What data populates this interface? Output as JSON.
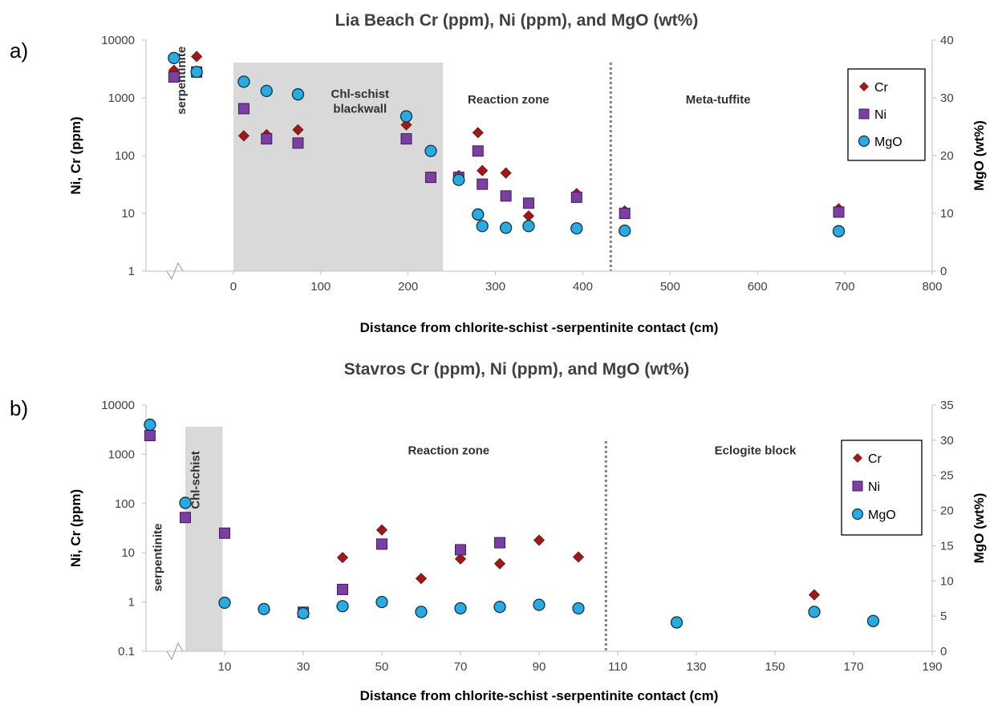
{
  "colors": {
    "cr": "#9b1b1b",
    "ni": "#7b3fa3",
    "mgo": "#29abe2",
    "shade": "#d9d9d9",
    "axis": "#bfbfbf"
  },
  "chart_data": [
    {
      "type": "scatter",
      "panel": "a)",
      "title": "Lia Beach Cr (ppm), Ni (ppm), and MgO (wt%)",
      "xlabel": "Distance from chlorite-schist -serpentinite contact (cm)",
      "ylabel": "Ni, Cr (ppm)",
      "y2label": "MgO (wt%)",
      "xlim": [
        -100,
        800
      ],
      "x_ticks": [
        0,
        100,
        200,
        300,
        400,
        500,
        600,
        700,
        800
      ],
      "ylim": [
        1,
        10000
      ],
      "y_scale": "log",
      "y_ticks": [
        1,
        10,
        100,
        1000,
        10000
      ],
      "y2lim": [
        0,
        40
      ],
      "y2_ticks": [
        0,
        10,
        20,
        30,
        40
      ],
      "axis_break": true,
      "legend_position": "top-right",
      "shaded_band": [
        0,
        240
      ],
      "dashed_line_x": 432,
      "zones": [
        {
          "text": "serpentinite",
          "x": -55,
          "y": 2000,
          "vertical": true
        },
        {
          "text": "Chl-schist",
          "x": 145,
          "y": 1000
        },
        {
          "text": "blackwall",
          "x": 145,
          "y": 550
        },
        {
          "text": "Reaction zone",
          "x": 315,
          "y": 800
        },
        {
          "text": "Meta-tuffite",
          "x": 555,
          "y": 800
        }
      ],
      "series": [
        {
          "name": "Cr",
          "marker": "diamond",
          "axis": "left",
          "points": [
            [
              -68,
              3000
            ],
            [
              -42,
              5200
            ],
            [
              12,
              220
            ],
            [
              38,
              230
            ],
            [
              74,
              280
            ],
            [
              198,
              340
            ],
            [
              226,
              42
            ],
            [
              258,
              45
            ],
            [
              280,
              250
            ],
            [
              285,
              55
            ],
            [
              312,
              50
            ],
            [
              338,
              9
            ],
            [
              393,
              22
            ],
            [
              448,
              11
            ],
            [
              693,
              12
            ]
          ]
        },
        {
          "name": "Ni",
          "marker": "square",
          "axis": "left",
          "points": [
            [
              -68,
              2300
            ],
            [
              -42,
              2800
            ],
            [
              12,
              650
            ],
            [
              38,
              195
            ],
            [
              74,
              165
            ],
            [
              198,
              195
            ],
            [
              226,
              42
            ],
            [
              258,
              42
            ],
            [
              280,
              120
            ],
            [
              285,
              32
            ],
            [
              312,
              20
            ],
            [
              338,
              15
            ],
            [
              393,
              19
            ],
            [
              448,
              10
            ],
            [
              693,
              10.5
            ]
          ]
        },
        {
          "name": "MgO",
          "marker": "circle",
          "axis": "right",
          "points": [
            [
              -68,
              36.9
            ],
            [
              -42,
              34.5
            ],
            [
              12,
              32.8
            ],
            [
              38,
              31.2
            ],
            [
              74,
              30.6
            ],
            [
              198,
              26.8
            ],
            [
              226,
              20.8
            ],
            [
              258,
              15.8
            ],
            [
              280,
              9.8
            ],
            [
              285,
              7.8
            ],
            [
              312,
              7.5
            ],
            [
              338,
              7.8
            ],
            [
              393,
              7.4
            ],
            [
              448,
              7.0
            ],
            [
              693,
              6.9
            ]
          ]
        }
      ]
    },
    {
      "type": "scatter",
      "panel": "b)",
      "title": "Stavros Cr (ppm), Ni (ppm), and MgO (wt%)",
      "xlabel": "Distance from chlorite-schist -serpentinite contact (cm)",
      "ylabel": "Ni, Cr (ppm)",
      "y2label": "MgO (wt%)",
      "xlim": [
        -10,
        190
      ],
      "x_ticks": [
        10,
        30,
        50,
        70,
        90,
        110,
        130,
        150,
        170,
        190
      ],
      "ylim": [
        0.1,
        10000
      ],
      "y_scale": "log",
      "y_ticks": [
        0.1,
        1,
        10,
        100,
        1000,
        10000
      ],
      "y2lim": [
        0,
        35
      ],
      "y2_ticks": [
        0,
        5,
        10,
        15,
        20,
        25,
        30,
        35
      ],
      "axis_break": true,
      "legend_position": "top-right",
      "shaded_band": [
        0,
        9.5
      ],
      "dashed_line_x": 107,
      "zones": [
        {
          "text": "serpentinite",
          "x": -6,
          "y": 8,
          "vertical": true
        },
        {
          "text": "Chl-schist",
          "x": 3.6,
          "y": 300,
          "vertical": true
        },
        {
          "text": "Reaction zone",
          "x": 67,
          "y": 1000
        },
        {
          "text": "Eclogite block",
          "x": 145,
          "y": 1000
        }
      ],
      "series": [
        {
          "name": "Cr",
          "marker": "diamond",
          "axis": "left",
          "points": [
            [
              40,
              8
            ],
            [
              50,
              29
            ],
            [
              60,
              3
            ],
            [
              70,
              7.5
            ],
            [
              80,
              6
            ],
            [
              90,
              18
            ],
            [
              100,
              8.2
            ],
            [
              160,
              1.4
            ]
          ]
        },
        {
          "name": "Ni",
          "marker": "square",
          "axis": "left",
          "points": [
            [
              -9,
              2400
            ],
            [
              0,
              52
            ],
            [
              10,
              25
            ],
            [
              30,
              0.62
            ],
            [
              40,
              1.8
            ],
            [
              50,
              15
            ],
            [
              70,
              11.5
            ],
            [
              80,
              16
            ]
          ]
        },
        {
          "name": "MgO",
          "marker": "circle",
          "axis": "right",
          "points": [
            [
              -9,
              32.2
            ],
            [
              0,
              21.1
            ],
            [
              10,
              6.9
            ],
            [
              20,
              6.0
            ],
            [
              30,
              5.4
            ],
            [
              40,
              6.4
            ],
            [
              50,
              7.0
            ],
            [
              60,
              5.6
            ],
            [
              70,
              6.1
            ],
            [
              80,
              6.3
            ],
            [
              90,
              6.6
            ],
            [
              100,
              6.1
            ],
            [
              125,
              4.1
            ],
            [
              160,
              5.6
            ],
            [
              175,
              4.3
            ]
          ]
        }
      ]
    }
  ]
}
